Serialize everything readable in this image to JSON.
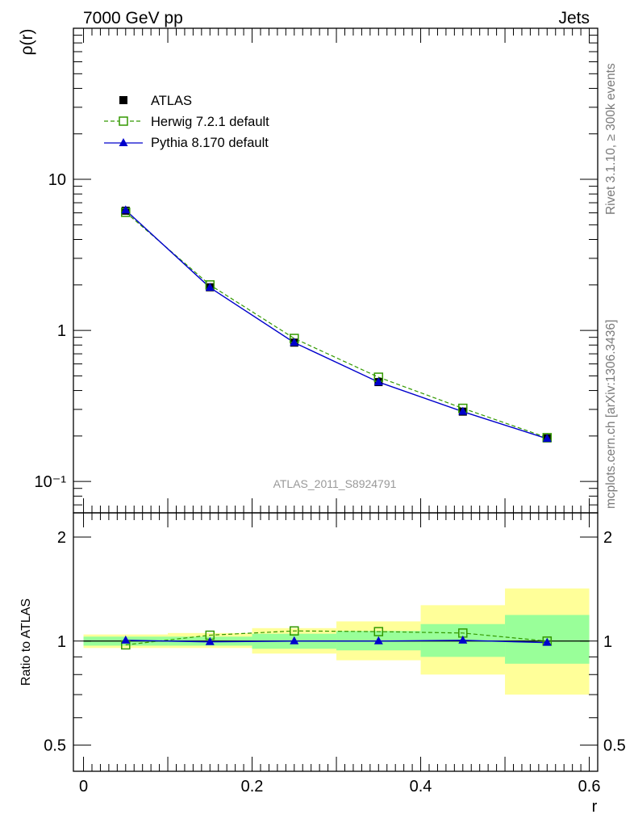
{
  "header": {
    "left": "7000 GeV pp",
    "right": "Jets"
  },
  "side_text": {
    "rivet": "Rivet 3.1.10, ≥ 300k events",
    "mcplots": "mcplots.cern.ch [arXiv:1306.3436]"
  },
  "chart_data": [
    {
      "type": "line",
      "panel": "main",
      "ylabel": "ρ(r)",
      "yscale": "log",
      "ylim": [
        0.062,
        100
      ],
      "xlim": [
        -0.012,
        0.61
      ],
      "y_tick_labels": [
        "10⁻¹",
        "1",
        "10"
      ],
      "watermark": "ATLAS_2011_S8924791",
      "legend_position": "top-left",
      "x": [
        0.05,
        0.15,
        0.25,
        0.35,
        0.45,
        0.55
      ],
      "series": [
        {
          "name": "ATLAS",
          "style": "data-square",
          "color": "#000000",
          "values": [
            6.2,
            1.93,
            0.83,
            0.455,
            0.29,
            0.193
          ]
        },
        {
          "name": "Herwig 7.2.1 default",
          "style": "open-square-dashed",
          "color": "#339900",
          "values": [
            6.05,
            2.0,
            0.885,
            0.49,
            0.305,
            0.195
          ]
        },
        {
          "name": "Pythia 8.170 default",
          "style": "triangle-solid",
          "color": "#0000cc",
          "values": [
            6.25,
            1.92,
            0.83,
            0.455,
            0.29,
            0.192
          ]
        }
      ]
    },
    {
      "type": "line",
      "panel": "ratio",
      "ylabel": "Ratio to ATLAS",
      "xlabel": "r",
      "ylim": [
        0.42,
        2.35
      ],
      "xlim": [
        -0.012,
        0.61
      ],
      "x_tick_labels": [
        "0",
        "0.2",
        "0.4",
        "0.6"
      ],
      "y_tick_labels": [
        "0.5",
        "1",
        "2"
      ],
      "bins": [
        [
          0.0,
          0.1
        ],
        [
          0.1,
          0.2
        ],
        [
          0.2,
          0.3
        ],
        [
          0.3,
          0.4
        ],
        [
          0.4,
          0.5
        ],
        [
          0.5,
          0.6
        ]
      ],
      "band_inner": [
        [
          0.97,
          1.03
        ],
        [
          0.97,
          1.03
        ],
        [
          0.95,
          1.05
        ],
        [
          0.94,
          1.07
        ],
        [
          0.9,
          1.12
        ],
        [
          0.86,
          1.19
        ]
      ],
      "band_outer": [
        [
          0.955,
          1.045
        ],
        [
          0.955,
          1.055
        ],
        [
          0.92,
          1.09
        ],
        [
          0.88,
          1.14
        ],
        [
          0.8,
          1.27
        ],
        [
          0.7,
          1.42
        ]
      ],
      "colors": {
        "inner": "#99ff99",
        "outer": "#ffff99"
      },
      "x": [
        0.05,
        0.15,
        0.25,
        0.35,
        0.45,
        0.55
      ],
      "series": [
        {
          "name": "Herwig 7.2.1 default",
          "color": "#339900",
          "values": [
            0.975,
            1.04,
            1.07,
            1.065,
            1.055,
            1.0
          ]
        },
        {
          "name": "Pythia 8.170 default",
          "color": "#0000cc",
          "values": [
            1.005,
            0.995,
            1.0,
            1.0,
            1.005,
            0.99
          ]
        }
      ]
    }
  ]
}
